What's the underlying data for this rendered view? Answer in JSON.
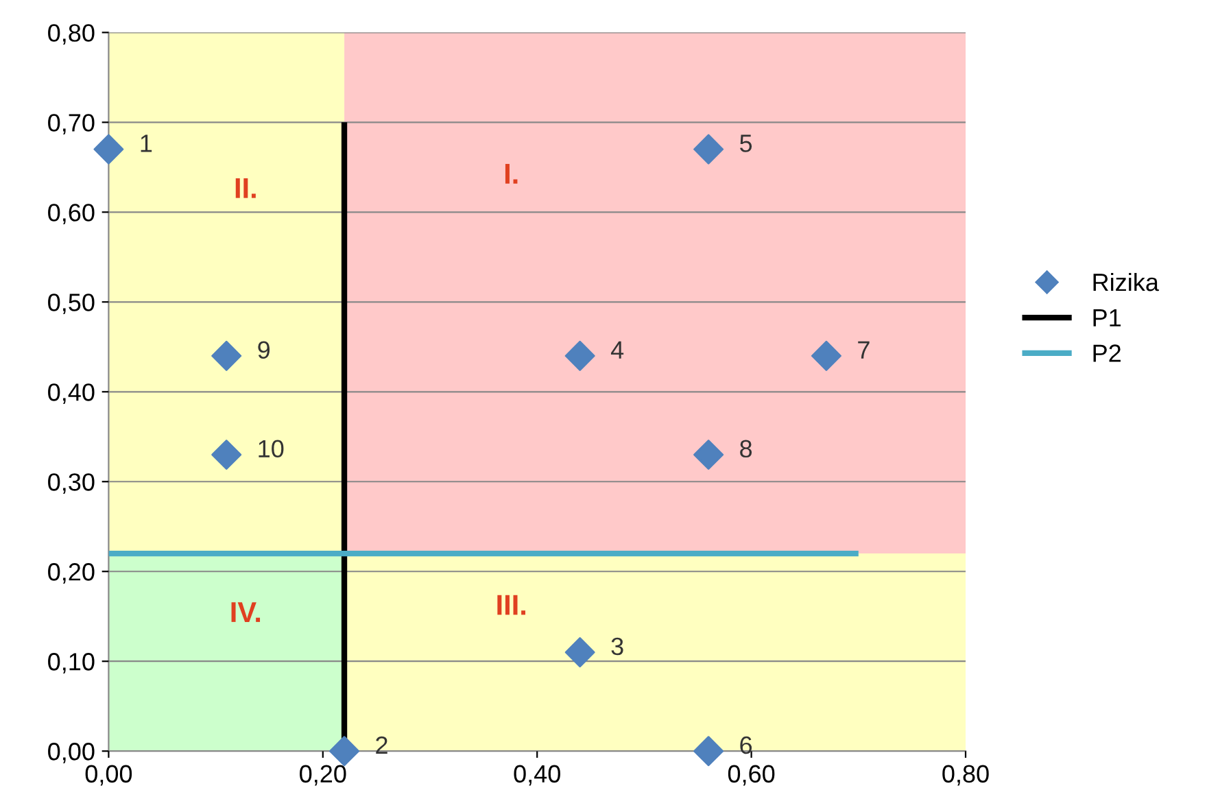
{
  "chart_data": {
    "type": "scatter",
    "xlim": [
      0,
      0.8
    ],
    "ylim": [
      0,
      0.8
    ],
    "xticks": [
      {
        "value": 0,
        "label": "0,00"
      },
      {
        "value": 0.2,
        "label": "0,20"
      },
      {
        "value": 0.4,
        "label": "0,40"
      },
      {
        "value": 0.6,
        "label": "0,60"
      },
      {
        "value": 0.8,
        "label": "0,80"
      }
    ],
    "yticks": [
      {
        "value": 0,
        "label": "0,00"
      },
      {
        "value": 0.1,
        "label": "0,10"
      },
      {
        "value": 0.2,
        "label": "0,20"
      },
      {
        "value": 0.3,
        "label": "0,30"
      },
      {
        "value": 0.4,
        "label": "0,40"
      },
      {
        "value": 0.5,
        "label": "0,50"
      },
      {
        "value": 0.6,
        "label": "0,60"
      },
      {
        "value": 0.7,
        "label": "0,70"
      },
      {
        "value": 0.8,
        "label": "0,80"
      }
    ],
    "grid": "y",
    "legend": "right",
    "series": [
      {
        "name": "Rizika",
        "color": "#4f81bd",
        "marker": "diamond",
        "x": [
          0,
          0.22,
          0.44,
          0.44,
          0.56,
          0.56,
          0.67,
          0.56,
          0.11,
          0.11
        ],
        "values": [
          0.67,
          0,
          0.11,
          0.44,
          0.67,
          0,
          0.44,
          0.33,
          0.44,
          0.33
        ]
      },
      {
        "type": "line",
        "name": "P1",
        "color": "#000000",
        "x": [
          0.22,
          0.22
        ],
        "values": [
          0,
          0.7
        ]
      },
      {
        "type": "line",
        "name": "P2",
        "color": "#4bacc6",
        "x": [
          0,
          0.7
        ],
        "values": [
          0.22,
          0.22
        ]
      }
    ],
    "annotations": [
      {
        "text": "1",
        "x": 0,
        "y": 0.67
      },
      {
        "text": "2",
        "x": 0.22,
        "y": 0
      },
      {
        "text": "3",
        "x": 0.44,
        "y": 0.11
      },
      {
        "text": "4",
        "x": 0.44,
        "y": 0.44
      },
      {
        "text": "5",
        "x": 0.56,
        "y": 0.67
      },
      {
        "text": "6",
        "x": 0.56,
        "y": 0
      },
      {
        "text": "7",
        "x": 0.67,
        "y": 0.44
      },
      {
        "text": "8",
        "x": 0.56,
        "y": 0.33
      },
      {
        "text": "9",
        "x": 0.11,
        "y": 0.44
      },
      {
        "text": "10",
        "x": 0.11,
        "y": 0.33
      },
      "I.",
      "II.",
      "III.",
      "IV."
    ]
  }
}
